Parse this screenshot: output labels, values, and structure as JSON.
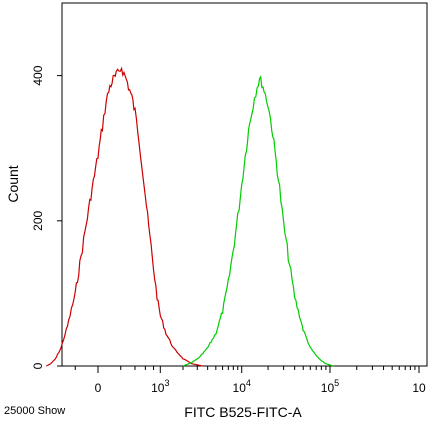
{
  "chart_data": {
    "type": "line",
    "title": "",
    "xlabel": "FITC B525-FITC-A",
    "ylabel": "Count",
    "footer_left": "25000 Show",
    "ylim": [
      0,
      500
    ],
    "y_ticks": [
      {
        "value": 0,
        "label": "0"
      },
      {
        "value": 200,
        "label": "200"
      },
      {
        "value": 400,
        "label": "400"
      }
    ],
    "x_ticks": [
      {
        "value": 0,
        "label": "0"
      },
      {
        "value": 1000,
        "base": "10",
        "exp": "3"
      },
      {
        "value": 10000,
        "base": "10",
        "exp": "4"
      },
      {
        "value": 100000,
        "base": "10",
        "exp": "5"
      },
      {
        "value": 1000000,
        "base": "10",
        "exp": ""
      }
    ],
    "series": [
      {
        "color": "#cc0000",
        "points": [
          [
            -700,
            0
          ],
          [
            -600,
            3
          ],
          [
            -500,
            10
          ],
          [
            -400,
            25
          ],
          [
            -300,
            55
          ],
          [
            -200,
            100
          ],
          [
            -150,
            140
          ],
          [
            -100,
            185
          ],
          [
            -50,
            235
          ],
          [
            0,
            290
          ],
          [
            30,
            330
          ],
          [
            60,
            365
          ],
          [
            90,
            385
          ],
          [
            120,
            395
          ],
          [
            150,
            400
          ],
          [
            180,
            405
          ],
          [
            210,
            412
          ],
          [
            240,
            402
          ],
          [
            270,
            395
          ],
          [
            300,
            385
          ],
          [
            350,
            370
          ],
          [
            400,
            350
          ],
          [
            450,
            325
          ],
          [
            500,
            295
          ],
          [
            550,
            265
          ],
          [
            600,
            235
          ],
          [
            650,
            205
          ],
          [
            700,
            180
          ],
          [
            800,
            135
          ],
          [
            900,
            95
          ],
          [
            1000,
            70
          ],
          [
            1200,
            45
          ],
          [
            1500,
            25
          ],
          [
            2000,
            10
          ],
          [
            2600,
            3
          ],
          [
            3500,
            0
          ]
        ]
      },
      {
        "color": "#00cc00",
        "points": [
          [
            2000,
            0
          ],
          [
            2600,
            5
          ],
          [
            3200,
            12
          ],
          [
            4000,
            25
          ],
          [
            5000,
            45
          ],
          [
            6000,
            75
          ],
          [
            7000,
            115
          ],
          [
            8000,
            160
          ],
          [
            9000,
            205
          ],
          [
            10000,
            250
          ],
          [
            11000,
            290
          ],
          [
            12000,
            325
          ],
          [
            13000,
            350
          ],
          [
            14000,
            370
          ],
          [
            15000,
            385
          ],
          [
            16000,
            395
          ],
          [
            17000,
            390
          ],
          [
            18000,
            380
          ],
          [
            20000,
            360
          ],
          [
            22000,
            330
          ],
          [
            24000,
            295
          ],
          [
            27000,
            245
          ],
          [
            30000,
            195
          ],
          [
            35000,
            140
          ],
          [
            40000,
            95
          ],
          [
            50000,
            50
          ],
          [
            60000,
            25
          ],
          [
            75000,
            10
          ],
          [
            90000,
            3
          ],
          [
            110000,
            0
          ]
        ]
      }
    ]
  }
}
